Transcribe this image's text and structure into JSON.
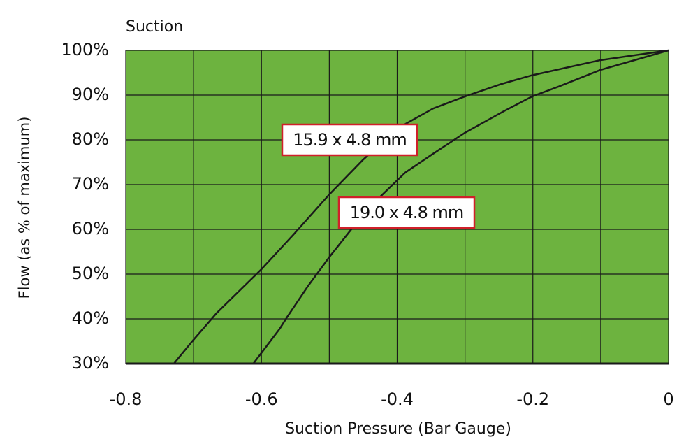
{
  "chart_data": {
    "type": "line",
    "title": "Suction",
    "x_label": "Suction Pressure (Bar Gauge)",
    "y_label": "Flow (as % of maximum)",
    "background": "#6db33f",
    "grid": true,
    "xlim": [
      -0.8,
      0
    ],
    "xticks": [
      -0.8,
      -0.6,
      -0.4,
      -0.2,
      0
    ],
    "x_minor_gridlines": [
      -0.7,
      -0.5,
      -0.3,
      -0.1
    ],
    "ylim": [
      30,
      100
    ],
    "yticks": [
      {
        "value": 30,
        "label": "30%"
      },
      {
        "value": 40,
        "label": "40%"
      },
      {
        "value": 50,
        "label": "50%"
      },
      {
        "value": 60,
        "label": "60%"
      },
      {
        "value": 70,
        "label": "70%"
      },
      {
        "value": 80,
        "label": "80%"
      },
      {
        "value": 90,
        "label": "90%"
      },
      {
        "value": 100,
        "label": "100%"
      }
    ],
    "series": [
      {
        "name": "15.9 x 4.8 mm",
        "color": "#1a1a1a",
        "x": [
          -0.729,
          -0.702,
          -0.666,
          -0.6,
          -0.553,
          -0.5,
          -0.45,
          -0.398,
          -0.347,
          -0.3,
          -0.246,
          -0.202,
          -0.101,
          0
        ],
        "values": [
          30,
          35,
          41.3,
          51.1,
          58.8,
          67.8,
          75.6,
          82.7,
          87,
          89.7,
          92.5,
          94.4,
          97.8,
          100
        ]
      },
      {
        "name": "19.0 x 4.8 mm",
        "color": "#1a1a1a",
        "x": [
          -0.612,
          -0.594,
          -0.573,
          -0.563,
          -0.532,
          -0.5,
          -0.465,
          -0.429,
          -0.388,
          -0.347,
          -0.3,
          -0.244,
          -0.201,
          -0.162,
          -0.101,
          0
        ],
        "values": [
          30,
          33.6,
          37.8,
          40.2,
          47.2,
          53.8,
          60.5,
          66.7,
          72.7,
          76.9,
          81.6,
          86.3,
          89.7,
          91.9,
          95.6,
          100
        ]
      }
    ]
  }
}
